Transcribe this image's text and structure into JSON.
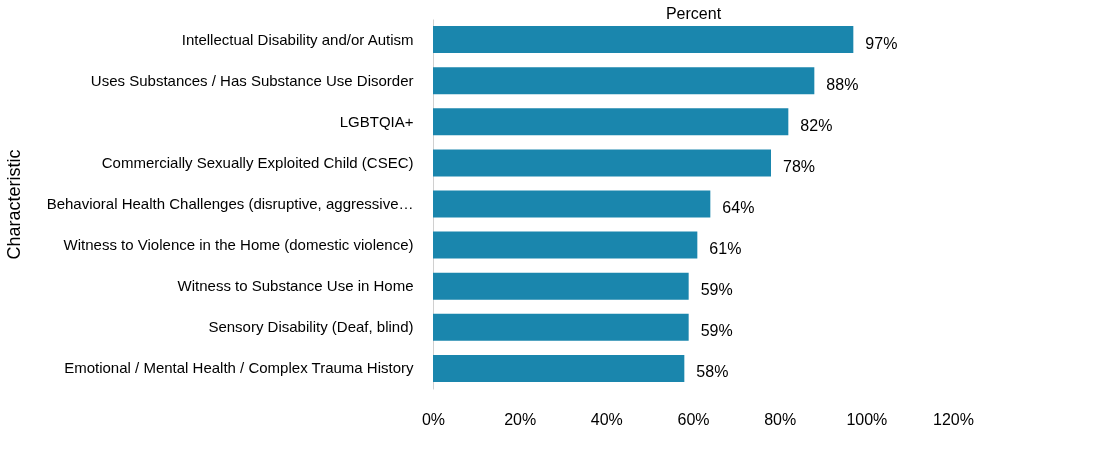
{
  "chart_data": {
    "type": "bar",
    "orientation": "horizontal",
    "xlabel": "Percent",
    "ylabel": "Characteristic",
    "categories": [
      "Intellectual Disability and/or Autism",
      "Uses Substances / Has Substance Use Disorder",
      "LGBTQIA+",
      "Commercially Sexually Exploited Child (CSEC)",
      "Behavioral Health Challenges (disruptive, aggressive…",
      "Witness to Violence in the Home (domestic violence)",
      "Witness to Substance Use in Home",
      "Sensory Disability (Deaf, blind)",
      "Emotional / Mental Health / Complex Trauma History"
    ],
    "values": [
      97,
      88,
      82,
      78,
      64,
      61,
      59,
      59,
      58
    ],
    "value_labels": [
      "97%",
      "88%",
      "82%",
      "78%",
      "64%",
      "61%",
      "59%",
      "59%",
      "58%"
    ],
    "color": "#1a86ad",
    "xlim": [
      0,
      120
    ],
    "xticks": [
      {
        "value": 0,
        "label": "0%"
      },
      {
        "value": 20,
        "label": "20%"
      },
      {
        "value": 40,
        "label": "40%"
      },
      {
        "value": 60,
        "label": "60%"
      },
      {
        "value": 80,
        "label": "80%"
      },
      {
        "value": 100,
        "label": "100%"
      },
      {
        "value": 120,
        "label": "120%"
      }
    ],
    "grid": false
  }
}
